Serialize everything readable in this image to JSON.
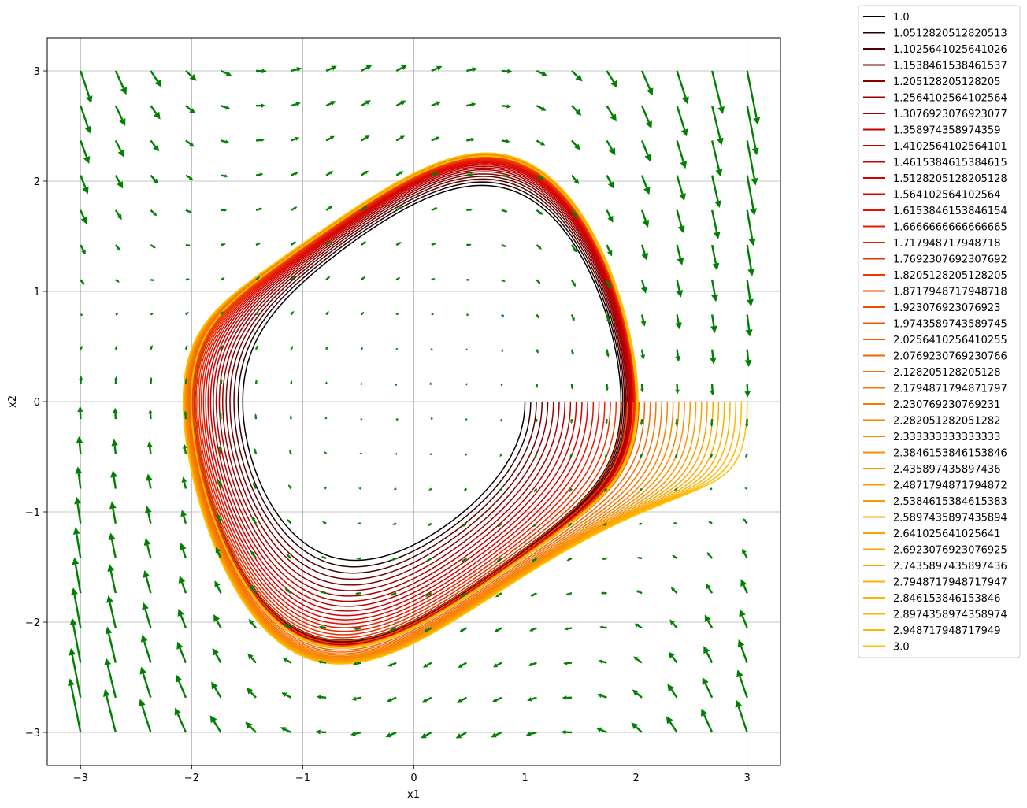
{
  "chart_data": {
    "type": "line",
    "title": "",
    "xlabel": "x1",
    "ylabel": "x2",
    "xlim": [
      -3.3,
      3.3
    ],
    "ylim": [
      -3.3,
      3.3
    ],
    "grid": true,
    "x_ticks": [
      -3,
      -2,
      -1,
      0,
      1,
      2,
      3
    ],
    "y_ticks": [
      -3,
      -2,
      -1,
      0,
      1,
      2,
      3
    ],
    "x_tick_labels": [
      "−3",
      "−2",
      "−1",
      "0",
      "1",
      "2",
      "3"
    ],
    "y_tick_labels": [
      "−3",
      "−2",
      "−1",
      "0",
      "1",
      "2",
      "3"
    ],
    "vector_field": {
      "color": "#008000",
      "x_range": [
        -3,
        3
      ],
      "y_range": [
        -3,
        3
      ],
      "grid_n": 20
    },
    "trajectory_start_x2": 0,
    "legend": {
      "location": "outside-upper-right",
      "entries": [
        "1.0",
        "1.0512820512820513",
        "1.1025641025641026",
        "1.1538461538461537",
        "1.205128205128205",
        "1.2564102564102564",
        "1.3076923076923077",
        "1.358974358974359",
        "1.4102564102564101",
        "1.4615384615384615",
        "1.5128205128205128",
        "1.564102564102564",
        "1.6153846153846154",
        "1.6666666666666665",
        "1.717948717948718",
        "1.7692307692307692",
        "1.8205128205128205",
        "1.8717948717948718",
        "1.923076923076923",
        "1.9743589743589745",
        "2.0256410256410255",
        "2.0769230769230766",
        "2.128205128205128",
        "2.1794871794871797",
        "2.230769230769231",
        "2.282051282051282",
        "2.333333333333333",
        "2.3846153846153846",
        "2.435897435897436",
        "2.4871794871794872",
        "2.5384615384615383",
        "2.5897435897435894",
        "2.641025641025641",
        "2.6923076923076925",
        "2.7435897435897436",
        "2.7948717948717947",
        "2.846153846153846",
        "2.8974358974358974",
        "2.948717948717949",
        "3.0"
      ]
    },
    "series_colors": [
      "#000000",
      "#2a0000",
      "#550000",
      "#6e0000",
      "#880000",
      "#990000",
      "#aa0000",
      "#b80000",
      "#c40000",
      "#cc0000",
      "#d40000",
      "#dc0500",
      "#e11000",
      "#e51a00",
      "#e82400",
      "#eb2e00",
      "#ee3800",
      "#f04200",
      "#f24b00",
      "#f35400",
      "#f45c00",
      "#f56400",
      "#f66c00",
      "#f77300",
      "#f87a00",
      "#f88000",
      "#f98600",
      "#f98c00",
      "#fa9100",
      "#fa9600",
      "#fb9b00",
      "#fba000",
      "#fba400",
      "#fca800",
      "#fcac00",
      "#fcb000",
      "#fdb300",
      "#fdb600",
      "#fdb900",
      "#fec000"
    ]
  }
}
